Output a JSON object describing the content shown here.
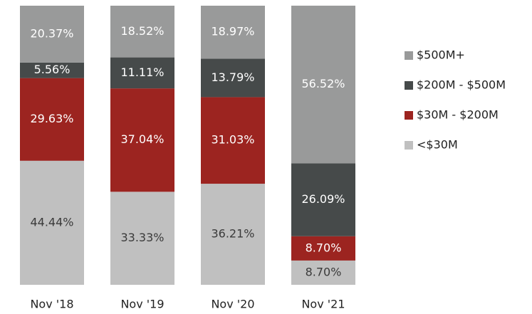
{
  "chart_data": {
    "type": "stacked_bar",
    "categories": [
      "Nov '18",
      "Nov '19",
      "Nov '20",
      "Nov '21"
    ],
    "series": [
      {
        "name": "<$30M",
        "color": "#c0c0c0",
        "values": [
          44.44,
          33.33,
          36.21,
          8.7
        ],
        "value_labels": [
          "44.44%",
          "33.33%",
          "36.21%",
          "8.70%"
        ]
      },
      {
        "name": "$30M - $200M",
        "color": "#9c2420",
        "values": [
          29.63,
          37.04,
          31.03,
          8.7
        ],
        "value_labels": [
          "29.63%",
          "37.04%",
          "31.03%",
          "8.70%"
        ]
      },
      {
        "name": "$200M - $500M",
        "color": "#464a4a",
        "values": [
          5.56,
          11.11,
          13.79,
          26.09
        ],
        "value_labels": [
          "5.56%",
          "11.11%",
          "13.79%",
          "26.09%"
        ]
      },
      {
        "name": "$500M+",
        "color": "#999a9a",
        "values": [
          20.37,
          18.52,
          18.97,
          56.52
        ],
        "value_labels": [
          "20.37%",
          "18.52%",
          "18.97%",
          "56.52%"
        ]
      }
    ],
    "ylim": [
      0,
      100
    ],
    "legend": "right"
  }
}
